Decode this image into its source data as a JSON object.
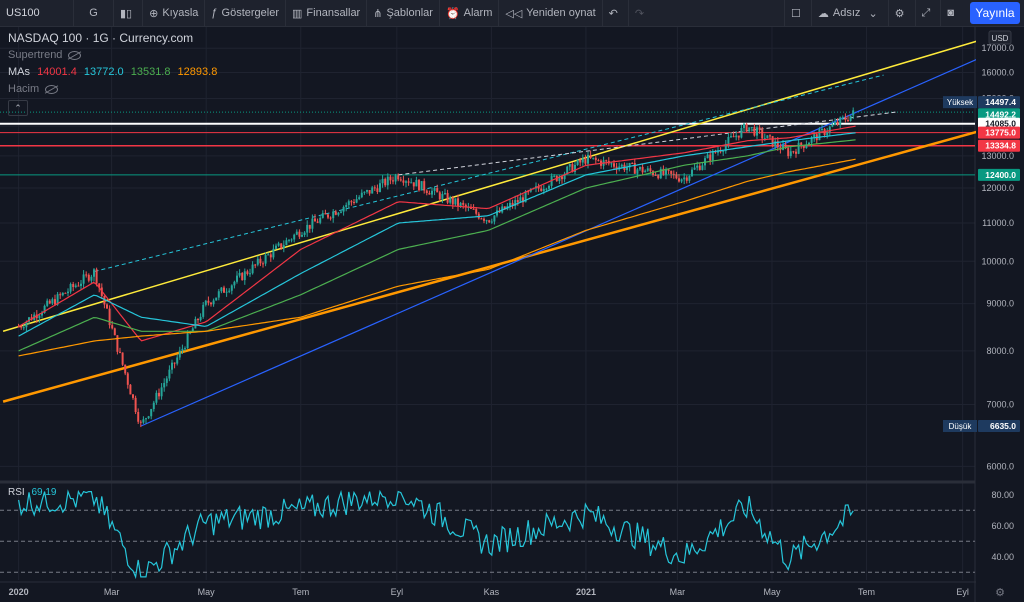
{
  "toolbar": {
    "symbol": "US100",
    "interval": "G",
    "compare": "Kıyasla",
    "indicators": "Göstergeler",
    "financials": "Finansallar",
    "templates": "Şablonlar",
    "alarm": "Alarm",
    "replay": "Yeniden oynat",
    "layout_name": "Adsız",
    "publish": "Yayınla"
  },
  "legend": {
    "title": "NASDAQ 100 · 1G · Currency.com",
    "supertrend": "Supertrend",
    "mas_label": "MAs",
    "mas_values": [
      {
        "value": "14001.4",
        "color": "#f23645"
      },
      {
        "value": "13772.0",
        "color": "#26c6da"
      },
      {
        "value": "13531.8",
        "color": "#4caf50"
      },
      {
        "value": "12893.8",
        "color": "#ff9800"
      }
    ],
    "volume": "Hacim"
  },
  "rsi_legend": {
    "label": "RSI",
    "value": "69.19"
  },
  "currency": "USD",
  "chart_data": [
    {
      "type": "line",
      "title": "NASDAQ 100 · 1G · Currency.com",
      "x": [
        "2020-01-01",
        "2020-02-19",
        "2020-03-20",
        "2020-05-01",
        "2020-07-01",
        "2020-09-02",
        "2020-10-30",
        "2021-01-01",
        "2021-03-05",
        "2021-04-15",
        "2021-05-12",
        "2021-06-24"
      ],
      "series": [
        {
          "name": "NASDAQ 100",
          "values": [
            8500,
            9750,
            6635,
            9000,
            10800,
            12400,
            11100,
            12900,
            12300,
            14000,
            13100,
            14492.2
          ]
        },
        {
          "name": "MAs",
          "values": [
            8500,
            9500,
            8200,
            8600,
            10300,
            11600,
            11400,
            12700,
            13100,
            13500,
            13600,
            14001.4
          ]
        },
        {
          "name": "MAs",
          "values": [
            8300,
            9200,
            8700,
            8500,
            9700,
            11000,
            11200,
            12400,
            13000,
            13300,
            13500,
            13772.0
          ]
        },
        {
          "name": "MAs",
          "values": [
            8000,
            8700,
            8400,
            8400,
            9200,
            10300,
            10800,
            12000,
            12700,
            13000,
            13300,
            13531.8
          ]
        },
        {
          "name": "MAs",
          "values": [
            7900,
            8200,
            8300,
            8400,
            8700,
            9400,
            9800,
            10800,
            11600,
            12200,
            12500,
            12893.8
          ]
        }
      ],
      "horizontal_levels": [
        14085.0,
        13775.0,
        13334.8,
        12400.0
      ],
      "price_labels": [
        {
          "label": "Yüksek",
          "value": "14497.4"
        },
        {
          "value": "14492.2"
        },
        {
          "value": "14085.0"
        },
        {
          "value": "13775.0"
        },
        {
          "value": "13334.8"
        },
        {
          "value": "12400.0"
        },
        {
          "label": "Düşük",
          "value": "6635.0"
        }
      ],
      "yticks": [
        "17000.0",
        "16000.0",
        "15000.0",
        "14000.0",
        "13000.0",
        "12000.0",
        "11000.0",
        "10000.0",
        "9000.0",
        "8000.0",
        "7000.0",
        "6000.0"
      ],
      "ylim": [
        5800,
        17700
      ],
      "ylog": true,
      "xticks": [
        "2020",
        "Mar",
        "May",
        "Tem",
        "Eyl",
        "Kas",
        "2021",
        "Mar",
        "May",
        "Tem",
        "Eyl"
      ],
      "grid": true,
      "colors": {
        "up": "#26a69a",
        "down": "#ef5350",
        "yellow": "#ffeb3b",
        "orange": "#ff9800",
        "blue": "#2962ff",
        "white": "#ffffff",
        "red": "#f23645",
        "teal": "#089981"
      }
    },
    {
      "type": "line",
      "title": "RSI",
      "x": [
        "2020-01-01",
        "2020-02-19",
        "2020-03-20",
        "2020-05-01",
        "2020-07-01",
        "2020-09-02",
        "2020-10-30",
        "2021-01-01",
        "2021-03-05",
        "2021-04-15",
        "2021-05-12",
        "2021-06-24"
      ],
      "series": [
        {
          "name": "RSI",
          "values": [
            75,
            78,
            28,
            62,
            70,
            82,
            48,
            68,
            40,
            72,
            38,
            69.19
          ]
        }
      ],
      "levels": [
        70,
        50,
        30
      ],
      "yticks": [
        "80.00",
        "60.00",
        "40.00"
      ],
      "ylim": [
        25,
        85
      ]
    }
  ]
}
